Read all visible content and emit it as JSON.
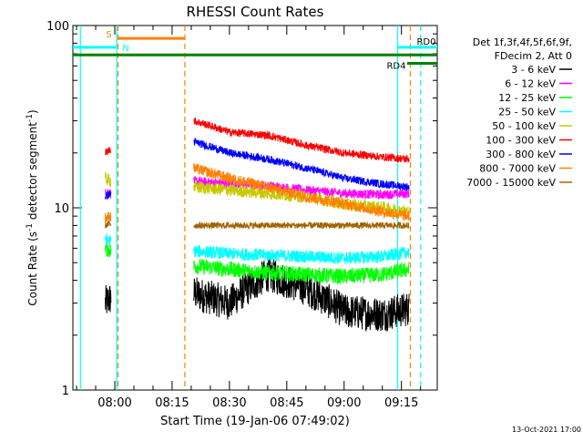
{
  "chart_data": {
    "type": "line",
    "title": "RHESSI Count Rates",
    "xlabel": "Start Time (19-Jan-06 07:49:02)",
    "ylabel_main": "Count Rate (s",
    "ylabel_sup1": "-1",
    "ylabel_mid": " detector segment",
    "ylabel_sup2": "-1",
    "ylabel_end": ")",
    "yscale": "log",
    "ylim": [
      1,
      100
    ],
    "xlim": [
      "07:49:02",
      "09:24:22"
    ],
    "x_ticks": [
      "08:00",
      "08:15",
      "08:30",
      "08:45",
      "09:00",
      "09:15"
    ],
    "y_ticks": [
      "1",
      "10",
      "100"
    ],
    "footer": "13-Oct-2021 17:00",
    "legend_header": [
      "Det 1f,3f,4f,5f,6f,9f,",
      "FDecim 2, Att 0"
    ],
    "series": [
      {
        "name": "3 - 6 keV",
        "color": "#000000",
        "segments": [
          {
            "x": [
              "07:57:30",
              "07:59:00"
            ],
            "y": [
              3.0,
              3.2
            ]
          },
          {
            "x": [
              "08:20:40",
              "08:30",
              "08:40",
              "08:50",
              "09:00",
              "09:10",
              "09:17"
            ],
            "y": [
              3.4,
              3.0,
              4.3,
              3.6,
              2.7,
              2.6,
              2.8
            ]
          }
        ]
      },
      {
        "name": "6 - 12 keV",
        "color": "#ff00ff",
        "segments": [
          {
            "x": [
              "07:57:30",
              "07:59:00"
            ],
            "y": [
              12.5,
              12.0
            ]
          },
          {
            "x": [
              "08:20:40",
              "08:30",
              "08:40",
              "08:50",
              "09:00",
              "09:10",
              "09:17"
            ],
            "y": [
              14.0,
              13.5,
              13.2,
              12.5,
              12.0,
              11.8,
              12.0
            ]
          }
        ]
      },
      {
        "name": "12 - 25 keV",
        "color": "#00ff00",
        "segments": [
          {
            "x": [
              "07:57:30",
              "07:59:00"
            ],
            "y": [
              6.0,
              5.8
            ]
          },
          {
            "x": [
              "08:20:40",
              "08:30",
              "08:40",
              "08:50",
              "09:00",
              "09:10",
              "09:17"
            ],
            "y": [
              4.8,
              4.6,
              4.4,
              4.3,
              4.2,
              4.3,
              4.6
            ]
          }
        ]
      },
      {
        "name": "25 - 50 keV",
        "color": "#00ffff",
        "segments": [
          {
            "x": [
              "07:57:30",
              "07:59:00"
            ],
            "y": [
              6.8,
              6.5
            ]
          },
          {
            "x": [
              "08:20:40",
              "08:30",
              "08:40",
              "08:50",
              "09:00",
              "09:10",
              "09:17"
            ],
            "y": [
              5.8,
              5.6,
              5.5,
              5.4,
              5.3,
              5.4,
              5.7
            ]
          }
        ]
      },
      {
        "name": "50 - 100 keV",
        "color": "#c8c800",
        "segments": [
          {
            "x": [
              "07:57:30",
              "07:59:00"
            ],
            "y": [
              14.5,
              14.0
            ]
          },
          {
            "x": [
              "08:20:40",
              "08:30",
              "08:40",
              "08:50",
              "09:00",
              "09:10",
              "09:17"
            ],
            "y": [
              13.0,
              12.5,
              12.0,
              11.5,
              10.5,
              10.0,
              9.5
            ]
          }
        ]
      },
      {
        "name": "100 - 300 keV",
        "color": "#ff0000",
        "segments": [
          {
            "x": [
              "07:57:30",
              "07:59:00"
            ],
            "y": [
              20.0,
              21.0
            ]
          },
          {
            "x": [
              "08:20:40",
              "08:30",
              "08:40",
              "08:50",
              "09:00",
              "09:10",
              "09:17"
            ],
            "y": [
              30.0,
              26.0,
              25.0,
              22.0,
              20.0,
              19.0,
              18.5
            ]
          }
        ]
      },
      {
        "name": "300 - 800 keV",
        "color": "#0000ff",
        "segments": [
          {
            "x": [
              "07:57:30",
              "07:59:00"
            ],
            "y": [
              11.5,
              12.0
            ]
          },
          {
            "x": [
              "08:20:40",
              "08:30",
              "08:40",
              "08:50",
              "09:00",
              "09:10",
              "09:17"
            ],
            "y": [
              23.0,
              20.0,
              18.5,
              16.5,
              14.5,
              13.5,
              13.0
            ]
          }
        ]
      },
      {
        "name": "800 - 7000 keV",
        "color": "#ff8000",
        "segments": [
          {
            "x": [
              "07:57:30",
              "07:59:00"
            ],
            "y": [
              8.8,
              9.0
            ]
          },
          {
            "x": [
              "08:20:40",
              "08:30",
              "08:40",
              "08:50",
              "09:00",
              "09:10",
              "09:17"
            ],
            "y": [
              16.5,
              14.5,
              13.0,
              11.5,
              10.5,
              9.5,
              9.0
            ]
          }
        ]
      },
      {
        "name": "7000 - 15000 keV",
        "color": "#a06400",
        "segments": [
          {
            "x": [
              "07:57:30",
              "07:59:00"
            ],
            "y": [
              8.0,
              8.2
            ]
          },
          {
            "x": [
              "08:20:40",
              "08:30",
              "08:40",
              "08:50",
              "09:00",
              "09:10",
              "09:17"
            ],
            "y": [
              8.0,
              8.0,
              8.0,
              8.0,
              8.0,
              8.0,
              8.0
            ]
          }
        ]
      }
    ],
    "annotations": {
      "vlines": [
        {
          "x": "07:51:00",
          "color": "#00ffff",
          "style": "solid"
        },
        {
          "x": "08:00:30",
          "color": "#00ffff",
          "style": "solid"
        },
        {
          "x": "08:00:50",
          "color": "#ff8000",
          "style": "dashed"
        },
        {
          "x": "08:18:20",
          "color": "#ff8000",
          "style": "dashed"
        },
        {
          "x": "09:14:00",
          "color": "#00ffff",
          "style": "solid"
        },
        {
          "x": "09:17:20",
          "color": "#ff8000",
          "style": "dashed"
        },
        {
          "x": "09:20:00",
          "color": "#00ffff",
          "style": "dashed"
        }
      ],
      "bars": [
        {
          "label": "S",
          "color": "#ff8000",
          "x": [
            "08:00:50",
            "08:18:20"
          ],
          "y": 85
        },
        {
          "label": "N",
          "color": "#00ffff",
          "x": [
            "07:49:02",
            "08:00:30"
          ],
          "y": 76
        },
        {
          "label": "",
          "color": "#008000",
          "x": [
            "07:49:02",
            "09:24:22"
          ],
          "y": 69
        },
        {
          "label": "RD4",
          "color": "#008000",
          "x": [
            "09:16:30",
            "09:24:22"
          ],
          "y": 62
        },
        {
          "label": "RD0",
          "color": "#00ffff",
          "x": [
            "09:14:00",
            "09:24:22"
          ],
          "y": 76
        }
      ]
    }
  }
}
